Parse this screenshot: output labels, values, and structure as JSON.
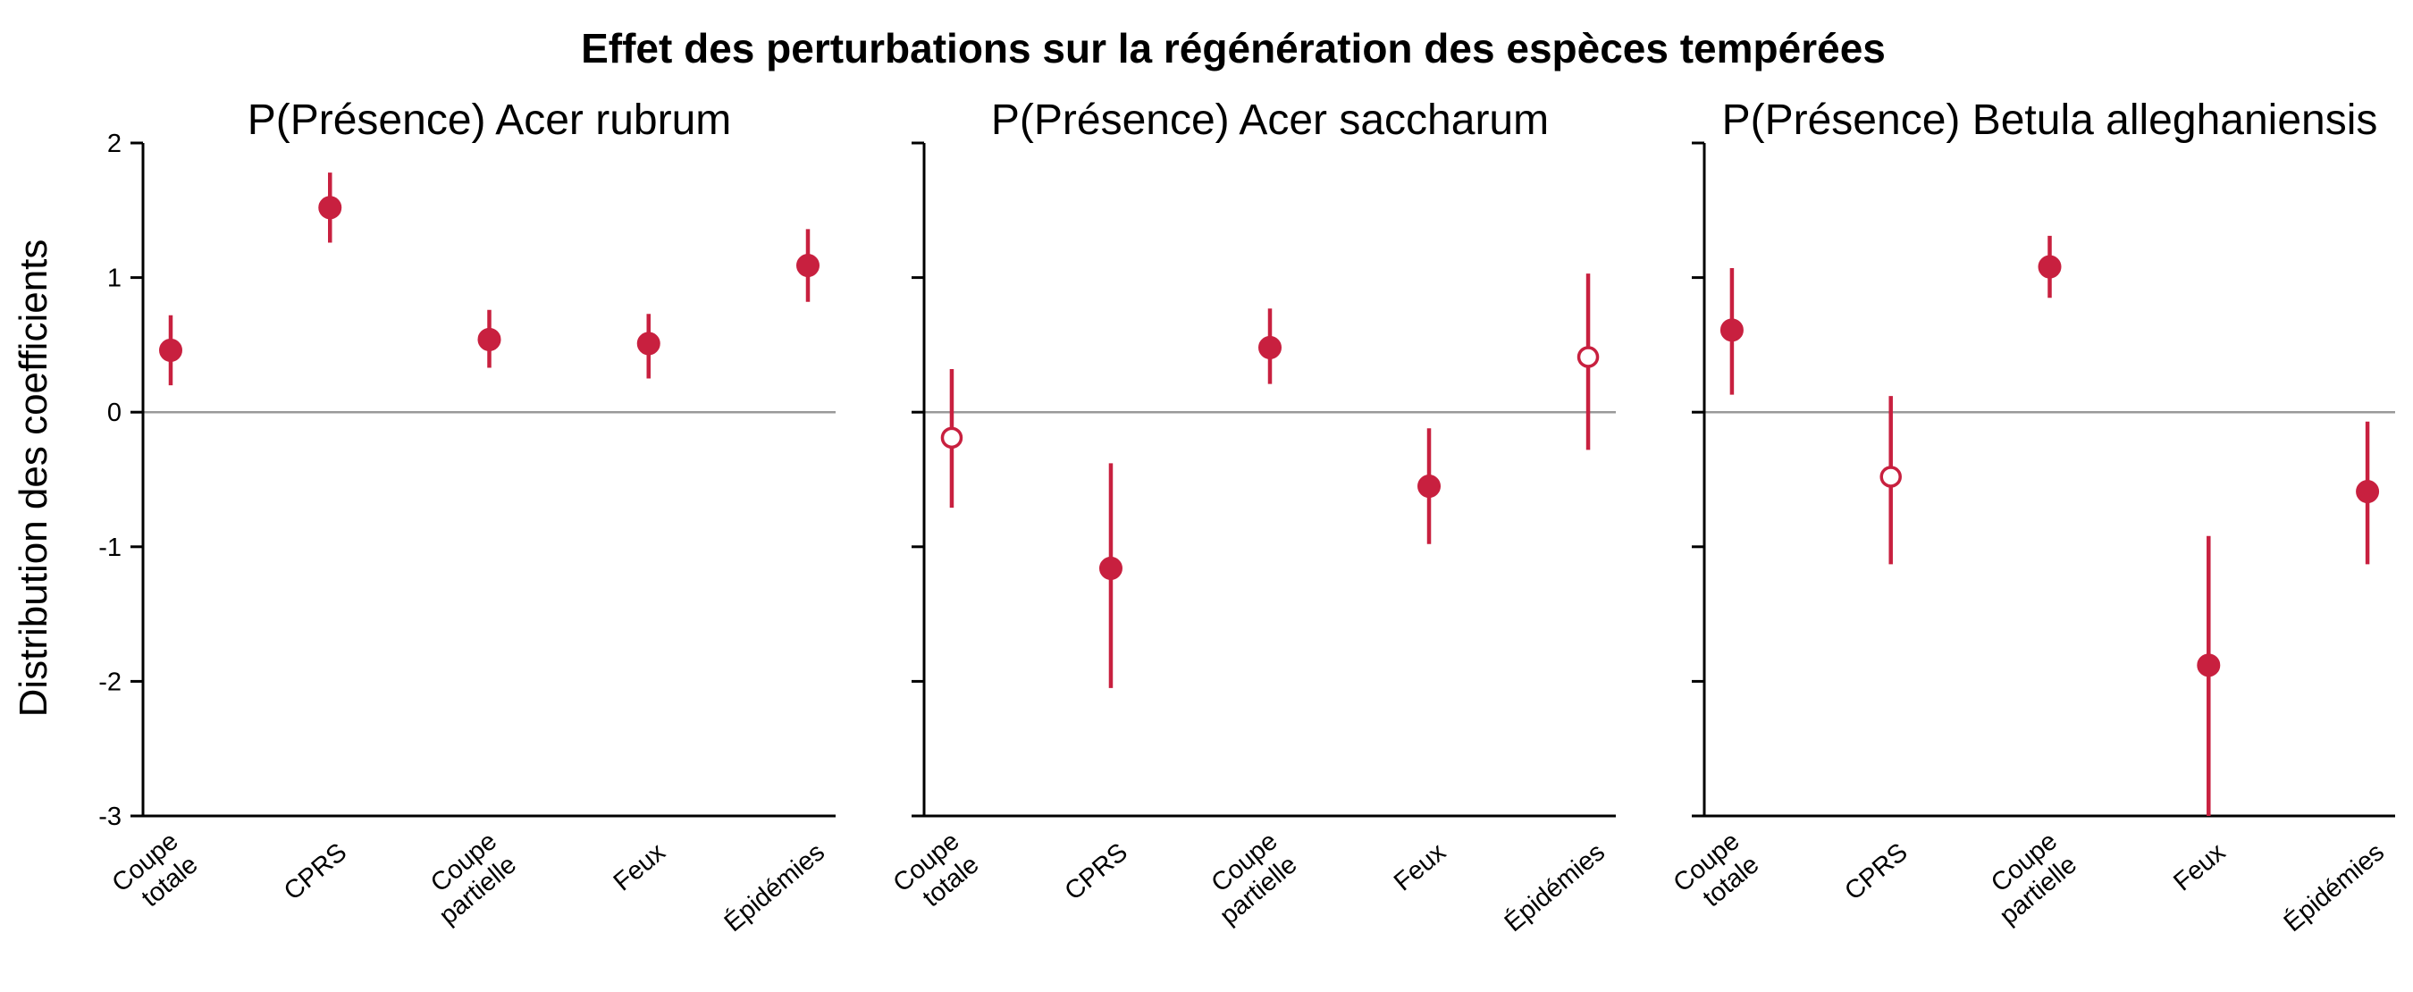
{
  "figure": {
    "title": "Effet des perturbations sur la régénération des espèces tempérées",
    "ylabel": "Distribution des coefficients"
  },
  "colors": {
    "marker": "#c8203f",
    "zero_line": "#999999",
    "axis": "#000000"
  },
  "chart_data": [
    {
      "type": "scatter",
      "title": "P(Présence) Acer rubrum",
      "categories": [
        "Coupe totale",
        "CPRS",
        "Coupe partielle",
        "Feux",
        "Épidémies"
      ],
      "category_lines": [
        [
          "Coupe",
          "totale"
        ],
        [
          "CPRS"
        ],
        [
          "Coupe",
          "partielle"
        ],
        [
          "Feux"
        ],
        [
          "Épidémies"
        ]
      ],
      "ylim": [
        -3,
        2
      ],
      "yticks": [
        -3,
        -2,
        -1,
        0,
        1,
        2
      ],
      "points": [
        {
          "y": 0.46,
          "low": 0.2,
          "high": 0.72,
          "filled": true
        },
        {
          "y": 1.52,
          "low": 1.26,
          "high": 1.78,
          "filled": true
        },
        {
          "y": 0.54,
          "low": 0.33,
          "high": 0.76,
          "filled": true
        },
        {
          "y": 0.51,
          "low": 0.25,
          "high": 0.73,
          "filled": true
        },
        {
          "y": 1.09,
          "low": 0.82,
          "high": 1.36,
          "filled": true
        }
      ]
    },
    {
      "type": "scatter",
      "title": "P(Présence) Acer saccharum",
      "categories": [
        "Coupe totale",
        "CPRS",
        "Coupe partielle",
        "Feux",
        "Épidémies"
      ],
      "category_lines": [
        [
          "Coupe",
          "totale"
        ],
        [
          "CPRS"
        ],
        [
          "Coupe",
          "partielle"
        ],
        [
          "Feux"
        ],
        [
          "Épidémies"
        ]
      ],
      "ylim": [
        -3,
        2
      ],
      "yticks": [
        -3,
        -2,
        -1,
        0,
        1,
        2
      ],
      "points": [
        {
          "y": -0.19,
          "low": -0.71,
          "high": 0.32,
          "filled": false
        },
        {
          "y": -1.16,
          "low": -2.05,
          "high": -0.38,
          "filled": true
        },
        {
          "y": 0.48,
          "low": 0.21,
          "high": 0.77,
          "filled": true
        },
        {
          "y": -0.55,
          "low": -0.98,
          "high": -0.12,
          "filled": true
        },
        {
          "y": 0.41,
          "low": -0.28,
          "high": 1.03,
          "filled": false
        }
      ]
    },
    {
      "type": "scatter",
      "title": "P(Présence) Betula alleghaniensis",
      "categories": [
        "Coupe totale",
        "CPRS",
        "Coupe partielle",
        "Feux",
        "Épidémies"
      ],
      "category_lines": [
        [
          "Coupe",
          "totale"
        ],
        [
          "CPRS"
        ],
        [
          "Coupe",
          "partielle"
        ],
        [
          "Feux"
        ],
        [
          "Épidémies"
        ]
      ],
      "ylim": [
        -3,
        2
      ],
      "yticks": [
        -3,
        -2,
        -1,
        0,
        1,
        2
      ],
      "points": [
        {
          "y": 0.61,
          "low": 0.13,
          "high": 1.07,
          "filled": true
        },
        {
          "y": -0.48,
          "low": -1.13,
          "high": 0.12,
          "filled": false
        },
        {
          "y": 1.08,
          "low": 0.85,
          "high": 1.31,
          "filled": true
        },
        {
          "y": -1.88,
          "low": -3.0,
          "high": -0.92,
          "filled": true
        },
        {
          "y": -0.59,
          "low": -1.13,
          "high": -0.07,
          "filled": true
        }
      ]
    }
  ]
}
